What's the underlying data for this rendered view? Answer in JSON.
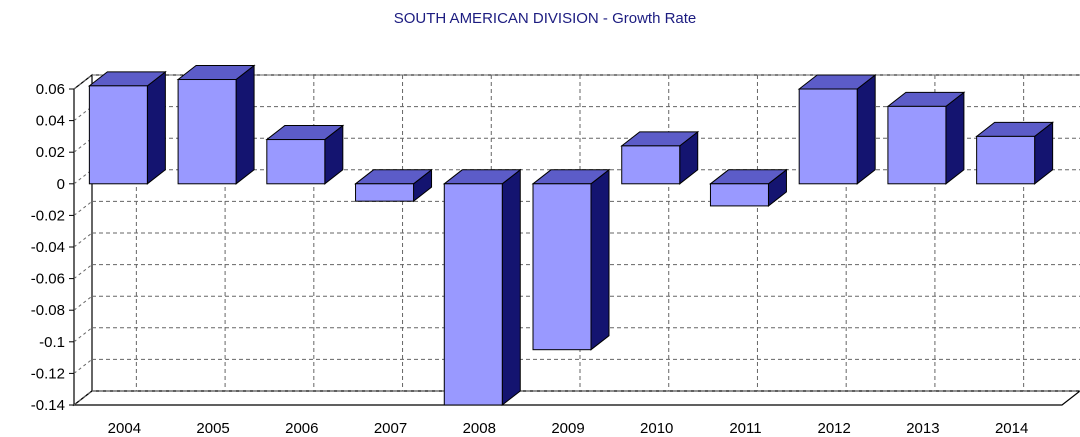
{
  "chart_data": {
    "type": "bar",
    "title": "SOUTH AMERICAN DIVISION - Growth Rate",
    "xlabel": "",
    "ylabel": "",
    "categories": [
      "2004",
      "2005",
      "2006",
      "2007",
      "2008",
      "2009",
      "2010",
      "2011",
      "2012",
      "2013",
      "2014"
    ],
    "series": [
      {
        "values": [
          0.062,
          0.066,
          0.028,
          -0.011,
          -0.14,
          -0.105,
          0.024,
          -0.014,
          0.06,
          0.049,
          0.03
        ]
      }
    ],
    "ylim": [
      -0.14,
      0.06
    ],
    "yticks": [
      0.06,
      0.04,
      0.02,
      0,
      -0.02,
      -0.04,
      -0.06,
      -0.08,
      -0.1,
      -0.12,
      -0.14
    ],
    "ytick_labels": [
      "0.06",
      "0.04",
      "0.02",
      "0",
      "-0.02",
      "-0.04",
      "-0.06",
      "-0.08",
      "-0.1",
      "-0.12",
      "-0.14"
    ],
    "grid": true,
    "style": "3d",
    "colors": {
      "bar_front": "#9999ff",
      "bar_top": "#5c5cc8",
      "bar_side": "#141470",
      "title": "#1c1c80"
    }
  }
}
